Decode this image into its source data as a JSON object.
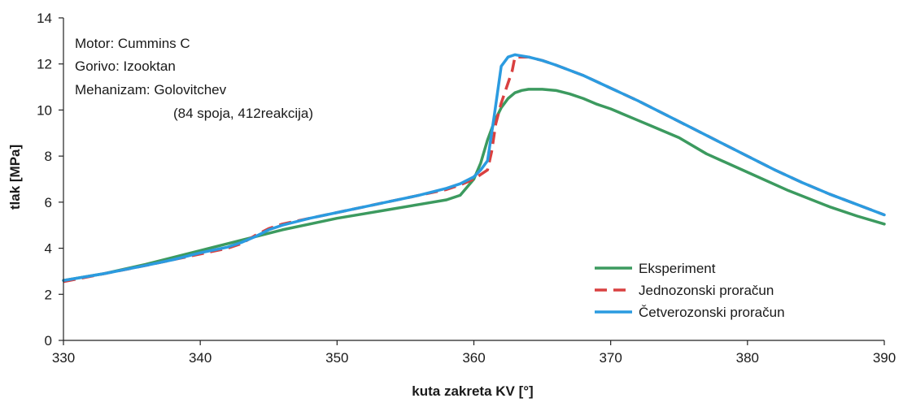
{
  "chart_data": {
    "type": "line",
    "title": "",
    "xlabel": "kuta zakreta KV [°]",
    "ylabel": "tlak [MPa]",
    "xlim": [
      330,
      390
    ],
    "ylim": [
      0,
      14
    ],
    "x_ticks": [
      330,
      340,
      350,
      360,
      370,
      380,
      390
    ],
    "y_ticks": [
      0,
      2,
      4,
      6,
      8,
      10,
      12,
      14
    ],
    "x_tick_labels": [
      "330",
      "340",
      "350",
      "360",
      "370",
      "380",
      "390"
    ],
    "y_tick_labels": [
      "0",
      "2",
      "4",
      "6",
      "8",
      "10",
      "12",
      "14"
    ],
    "grid": false,
    "legend_position": "bottom-right",
    "annotations": [
      "Motor: Cummins C",
      "Gorivo: Izooktan",
      "Mehanizam:  Golovitchev",
      "(84 spoja, 412reakcija)"
    ],
    "series": [
      {
        "name": "Eksperiment",
        "color": "#3c9a5f",
        "dash": "solid",
        "x": [
          330,
          333,
          336,
          338,
          340,
          342,
          344,
          346,
          348,
          350,
          352,
          354,
          356,
          358,
          359,
          360,
          360.5,
          361,
          361.5,
          362,
          362.5,
          363,
          363.5,
          364,
          365,
          366,
          367,
          368,
          369,
          370,
          371,
          372,
          373,
          375,
          377,
          380,
          383,
          386,
          388,
          390
        ],
        "y": [
          2.6,
          2.9,
          3.3,
          3.6,
          3.9,
          4.2,
          4.5,
          4.8,
          5.05,
          5.3,
          5.5,
          5.7,
          5.9,
          6.1,
          6.3,
          7.0,
          7.7,
          8.7,
          9.5,
          10.1,
          10.5,
          10.75,
          10.85,
          10.9,
          10.9,
          10.85,
          10.7,
          10.5,
          10.25,
          10.05,
          9.8,
          9.55,
          9.3,
          8.8,
          8.1,
          7.3,
          6.5,
          5.8,
          5.4,
          5.05
        ]
      },
      {
        "name": "Jednozonski proračun",
        "color": "#d94040",
        "dash": "dashed",
        "x": [
          330,
          333,
          336,
          338,
          340,
          342,
          343,
          344,
          345,
          346,
          348,
          350,
          352,
          354,
          356,
          358,
          359,
          360,
          360.5,
          361,
          361.3,
          361.6,
          362,
          362.4,
          362.8,
          363,
          364,
          365,
          366,
          368,
          370,
          372,
          374,
          376,
          378,
          380,
          382,
          384,
          386,
          388,
          390
        ],
        "y": [
          2.55,
          2.9,
          3.25,
          3.5,
          3.75,
          4.0,
          4.2,
          4.55,
          4.85,
          5.05,
          5.3,
          5.55,
          5.8,
          6.05,
          6.3,
          6.55,
          6.75,
          7.0,
          7.2,
          7.4,
          8.2,
          9.4,
          10.3,
          11.0,
          11.7,
          12.3,
          12.3,
          12.15,
          11.95,
          11.5,
          10.95,
          10.4,
          9.8,
          9.2,
          8.6,
          8.0,
          7.4,
          6.85,
          6.35,
          5.9,
          5.45
        ]
      },
      {
        "name": "Četverozonski proračun",
        "color": "#2b9be0",
        "dash": "solid",
        "x": [
          330,
          333,
          336,
          338,
          340,
          342,
          343,
          344,
          345,
          346,
          348,
          350,
          352,
          354,
          356,
          358,
          359,
          360,
          360.5,
          361,
          361.5,
          362,
          362.5,
          363,
          364,
          365,
          366,
          368,
          370,
          372,
          374,
          376,
          378,
          380,
          382,
          384,
          386,
          388,
          390
        ],
        "y": [
          2.6,
          2.9,
          3.25,
          3.5,
          3.8,
          4.05,
          4.25,
          4.5,
          4.8,
          5.0,
          5.3,
          5.55,
          5.8,
          6.05,
          6.3,
          6.6,
          6.8,
          7.1,
          7.4,
          7.8,
          9.8,
          11.9,
          12.3,
          12.4,
          12.3,
          12.15,
          11.95,
          11.5,
          10.95,
          10.4,
          9.8,
          9.2,
          8.6,
          8.0,
          7.4,
          6.85,
          6.35,
          5.9,
          5.45
        ]
      }
    ]
  }
}
